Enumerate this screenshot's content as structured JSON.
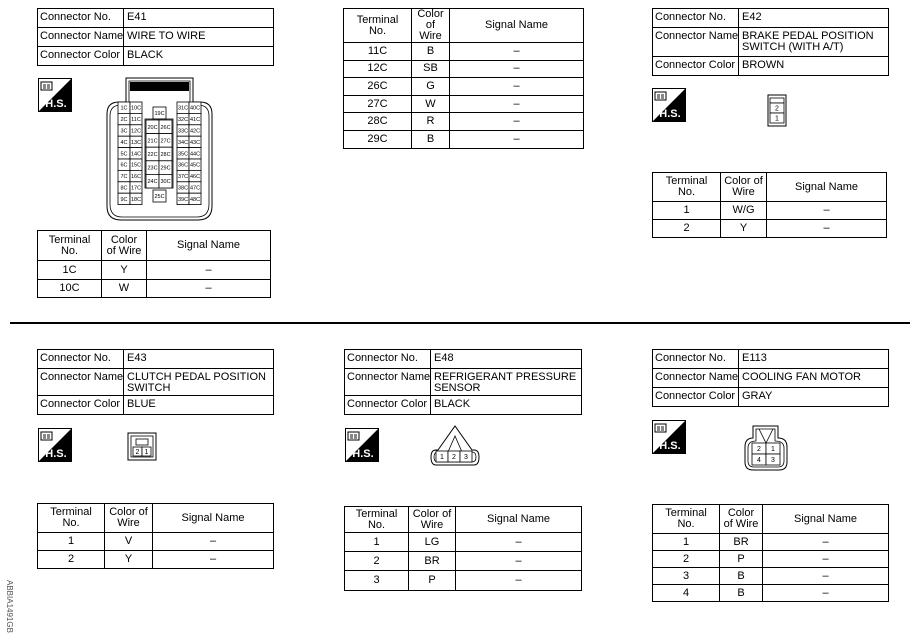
{
  "connectors": [
    {
      "id": "E41",
      "info": [
        {
          "label": "Connector No.",
          "value": "E41"
        },
        {
          "label": "Connector Name",
          "value": "WIRE TO WIRE"
        },
        {
          "label": "Connector Color",
          "value": "BLACK"
        }
      ],
      "terminal_headers": [
        "Terminal No.",
        "Color of Wire",
        "Signal Name"
      ],
      "terminals": [
        {
          "no": "1C",
          "color": "Y",
          "signal": "–"
        },
        {
          "no": "10C",
          "color": "W",
          "signal": "–"
        }
      ],
      "pins": {
        "left_a": [
          "1C",
          "2C",
          "3C",
          "4C",
          "5C",
          "6C",
          "7C",
          "8C",
          "9C"
        ],
        "left_b": [
          "10C",
          "11C",
          "12C",
          "13C",
          "14C",
          "15C",
          "16C",
          "17C",
          "18C"
        ],
        "mid_top": "19C",
        "mid_a": [
          "20C",
          "21C",
          "22C",
          "23C",
          "24C"
        ],
        "mid_b": [
          "26C",
          "27C",
          "28C",
          "29C",
          "30C"
        ],
        "mid_bottom": "25C",
        "right_a": [
          "31C",
          "32C",
          "33C",
          "34C",
          "35C",
          "36C",
          "37C",
          "38C",
          "39C"
        ],
        "right_b": [
          "40C",
          "41C",
          "42C",
          "43C",
          "44C",
          "45C",
          "46C",
          "47C",
          "48C"
        ]
      }
    },
    {
      "id": "E41-cont",
      "terminal_headers": [
        "Terminal No.",
        "Color of Wire",
        "Signal Name"
      ],
      "terminals": [
        {
          "no": "11C",
          "color": "B",
          "signal": "–"
        },
        {
          "no": "12C",
          "color": "SB",
          "signal": "–"
        },
        {
          "no": "26C",
          "color": "G",
          "signal": "–"
        },
        {
          "no": "27C",
          "color": "W",
          "signal": "–"
        },
        {
          "no": "28C",
          "color": "R",
          "signal": "–"
        },
        {
          "no": "29C",
          "color": "B",
          "signal": "–"
        }
      ]
    },
    {
      "id": "E42",
      "info": [
        {
          "label": "Connector No.",
          "value": "E42"
        },
        {
          "label": "Connector Name",
          "value": "BRAKE PEDAL POSITION SWITCH (WITH A/T)"
        },
        {
          "label": "Connector Color",
          "value": "BROWN"
        }
      ],
      "terminal_headers": [
        "Terminal No.",
        "Color of Wire",
        "Signal Name"
      ],
      "terminals": [
        {
          "no": "1",
          "color": "W/G",
          "signal": "–"
        },
        {
          "no": "2",
          "color": "Y",
          "signal": "–"
        }
      ],
      "pins": [
        "2",
        "1"
      ]
    },
    {
      "id": "E43",
      "info": [
        {
          "label": "Connector No.",
          "value": "E43"
        },
        {
          "label": "Connector Name",
          "value": "CLUTCH PEDAL POSITION SWITCH"
        },
        {
          "label": "Connector Color",
          "value": "BLUE"
        }
      ],
      "terminal_headers": [
        "Terminal No.",
        "Color of Wire",
        "Signal Name"
      ],
      "terminals": [
        {
          "no": "1",
          "color": "V",
          "signal": "–"
        },
        {
          "no": "2",
          "color": "Y",
          "signal": "–"
        }
      ],
      "pins": [
        "2",
        "1"
      ]
    },
    {
      "id": "E48",
      "info": [
        {
          "label": "Connector No.",
          "value": "E48"
        },
        {
          "label": "Connector Name",
          "value": "REFRIGERANT PRESSURE SENSOR"
        },
        {
          "label": "Connector Color",
          "value": "BLACK"
        }
      ],
      "terminal_headers": [
        "Terminal No.",
        "Color of Wire",
        "Signal Name"
      ],
      "terminals": [
        {
          "no": "1",
          "color": "LG",
          "signal": "–"
        },
        {
          "no": "2",
          "color": "BR",
          "signal": "–"
        },
        {
          "no": "3",
          "color": "P",
          "signal": "–"
        }
      ],
      "pins": [
        "1",
        "2",
        "3"
      ]
    },
    {
      "id": "E113",
      "info": [
        {
          "label": "Connector No.",
          "value": "E113"
        },
        {
          "label": "Connector Name",
          "value": "COOLING FAN MOTOR"
        },
        {
          "label": "Connector Color",
          "value": "GRAY"
        }
      ],
      "terminal_headers": [
        "Terminal No.",
        "Color of Wire",
        "Signal Name"
      ],
      "terminals": [
        {
          "no": "1",
          "color": "BR",
          "signal": "–"
        },
        {
          "no": "2",
          "color": "P",
          "signal": "–"
        },
        {
          "no": "3",
          "color": "B",
          "signal": "–"
        },
        {
          "no": "4",
          "color": "B",
          "signal": "–"
        }
      ],
      "pins": [
        "2",
        "1",
        "4",
        "3"
      ]
    }
  ],
  "hs_icon": {
    "icon": "harness-side-icon",
    "label": "H.S."
  },
  "figure_code": "ABBIA1491GB"
}
